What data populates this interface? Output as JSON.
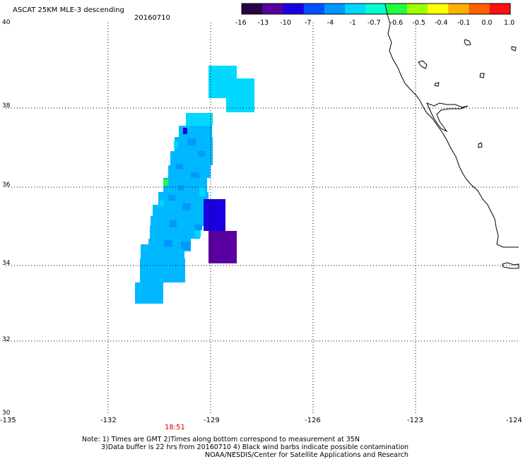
{
  "header": {
    "title": "ASCAT 25KM MLE-3 descending",
    "date": "20160710"
  },
  "colorbar": {
    "labels": [
      "-16",
      "-13",
      "-10",
      "-7",
      "-4",
      "-1",
      "-0.7",
      "-0.6",
      "-0.5",
      "-0.4",
      "-0.1",
      "0.0",
      "1.0"
    ],
    "colors": [
      "#2a0048",
      "#5a00a0",
      "#1a00e0",
      "#0050ff",
      "#0098ff",
      "#00d8ff",
      "#00ffd0",
      "#20ff40",
      "#a0ff00",
      "#ffff00",
      "#ffb000",
      "#ff6000",
      "#ff1010"
    ]
  },
  "map": {
    "lon_range": [
      -135,
      -124
    ],
    "lat_range": [
      30,
      40
    ],
    "lon_ticks": [
      "-135",
      "-132",
      "-129",
      "-126",
      "-123",
      "-124"
    ],
    "lat_ticks": [
      "40",
      "38",
      "36",
      "34",
      "32",
      "30"
    ],
    "time_label": "18:51",
    "legend_colors": {
      "cyan": "#00d8ff",
      "light_blue": "#00b8ff",
      "medium_blue": "#0098ff",
      "blue": "#1a00e0",
      "violet": "#5a00a0",
      "green": "#20ff40",
      "coastline": "#000000"
    }
  },
  "notes": {
    "line1": "Note: 1) Times are GMT 2)Times along bottom correspond to measurement at 35N",
    "line2": "3)Data buffer is 22 hrs from 20160710 4) Black wind barbs indicate possible contamination",
    "line3": "NOAA/NESDIS/Center for Satellite Applications and Research"
  }
}
